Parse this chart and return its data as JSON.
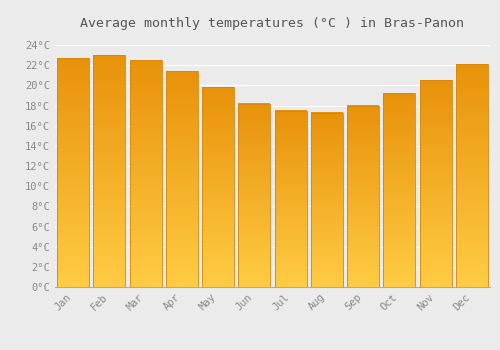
{
  "months": [
    "Jan",
    "Feb",
    "Mar",
    "Apr",
    "May",
    "Jun",
    "Jul",
    "Aug",
    "Sep",
    "Oct",
    "Nov",
    "Dec"
  ],
  "temperatures": [
    22.7,
    23.0,
    22.5,
    21.4,
    19.8,
    18.2,
    17.5,
    17.3,
    18.0,
    19.2,
    20.5,
    22.1
  ],
  "bar_color_top": "#E8920A",
  "bar_color_bottom": "#FFCC44",
  "bar_edge_color": "#D4870A",
  "title": "Average monthly temperatures (°C ) in Bras-Panon",
  "ylim": [
    0,
    25
  ],
  "yticks": [
    0,
    2,
    4,
    6,
    8,
    10,
    12,
    14,
    16,
    18,
    20,
    22,
    24
  ],
  "ytick_labels": [
    "0°C",
    "2°C",
    "4°C",
    "6°C",
    "8°C",
    "10°C",
    "12°C",
    "14°C",
    "16°C",
    "18°C",
    "20°C",
    "22°C",
    "24°C"
  ],
  "title_fontsize": 9.5,
  "tick_fontsize": 7.5,
  "background_color": "#ebebeb",
  "grid_color": "#ffffff",
  "bar_width": 0.88,
  "tick_color": "#888888",
  "title_color": "#555555"
}
